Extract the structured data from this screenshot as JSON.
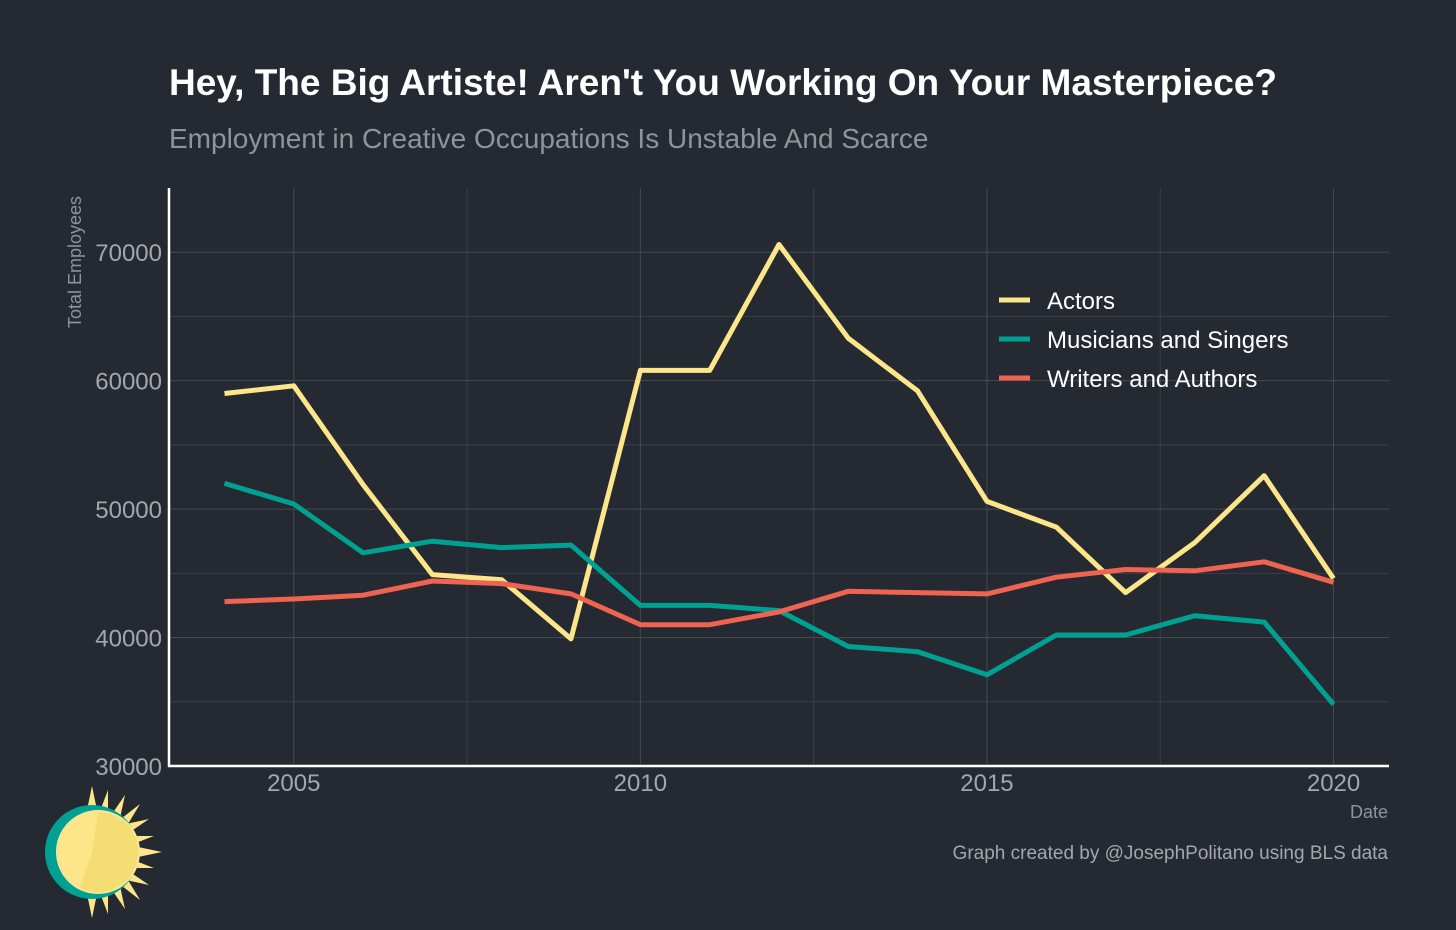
{
  "title": "Hey, The Big Artiste! Aren't You Working On Your Masterpiece?",
  "subtitle": "Employment in Creative Occupations Is Unstable And Scarce",
  "credit": "Graph created by @JosephPolitano using BLS data",
  "logo_icon": "sun-logo-icon",
  "chart_data": {
    "type": "line",
    "title": "Hey, The Big Artiste! Aren't You Working On Your Masterpiece?",
    "subtitle": "Employment in Creative Occupations Is Unstable And Scarce",
    "xlabel": "Date",
    "ylabel": "Total Employees",
    "x": [
      2004,
      2005,
      2006,
      2007,
      2008,
      2009,
      2010,
      2011,
      2012,
      2013,
      2014,
      2015,
      2016,
      2017,
      2018,
      2019,
      2020
    ],
    "xlim": [
      2003.2,
      2020.8
    ],
    "ylim": [
      30000,
      75000
    ],
    "x_ticks": [
      2005,
      2010,
      2015,
      2020
    ],
    "y_ticks": [
      30000,
      40000,
      50000,
      60000,
      70000
    ],
    "grid": true,
    "legend_position": "top-right",
    "series": [
      {
        "name": "Actors",
        "color": "#fde68a",
        "values": [
          59000,
          59600,
          51900,
          44900,
          44500,
          39900,
          60800,
          60800,
          70600,
          63300,
          59200,
          50600,
          48600,
          43500,
          47400,
          52600,
          44600
        ]
      },
      {
        "name": "Musicians and Singers",
        "color": "#00a193",
        "values": [
          52000,
          50400,
          46600,
          47500,
          47000,
          47200,
          42500,
          42500,
          42100,
          39300,
          38900,
          37100,
          40200,
          40200,
          41700,
          41200,
          34800
        ]
      },
      {
        "name": "Writers and Authors",
        "color": "#ee6352",
        "values": [
          42800,
          43000,
          43300,
          44400,
          44200,
          43400,
          41000,
          41000,
          42000,
          43600,
          43500,
          43400,
          44700,
          45300,
          45200,
          45900,
          44300
        ]
      }
    ]
  }
}
